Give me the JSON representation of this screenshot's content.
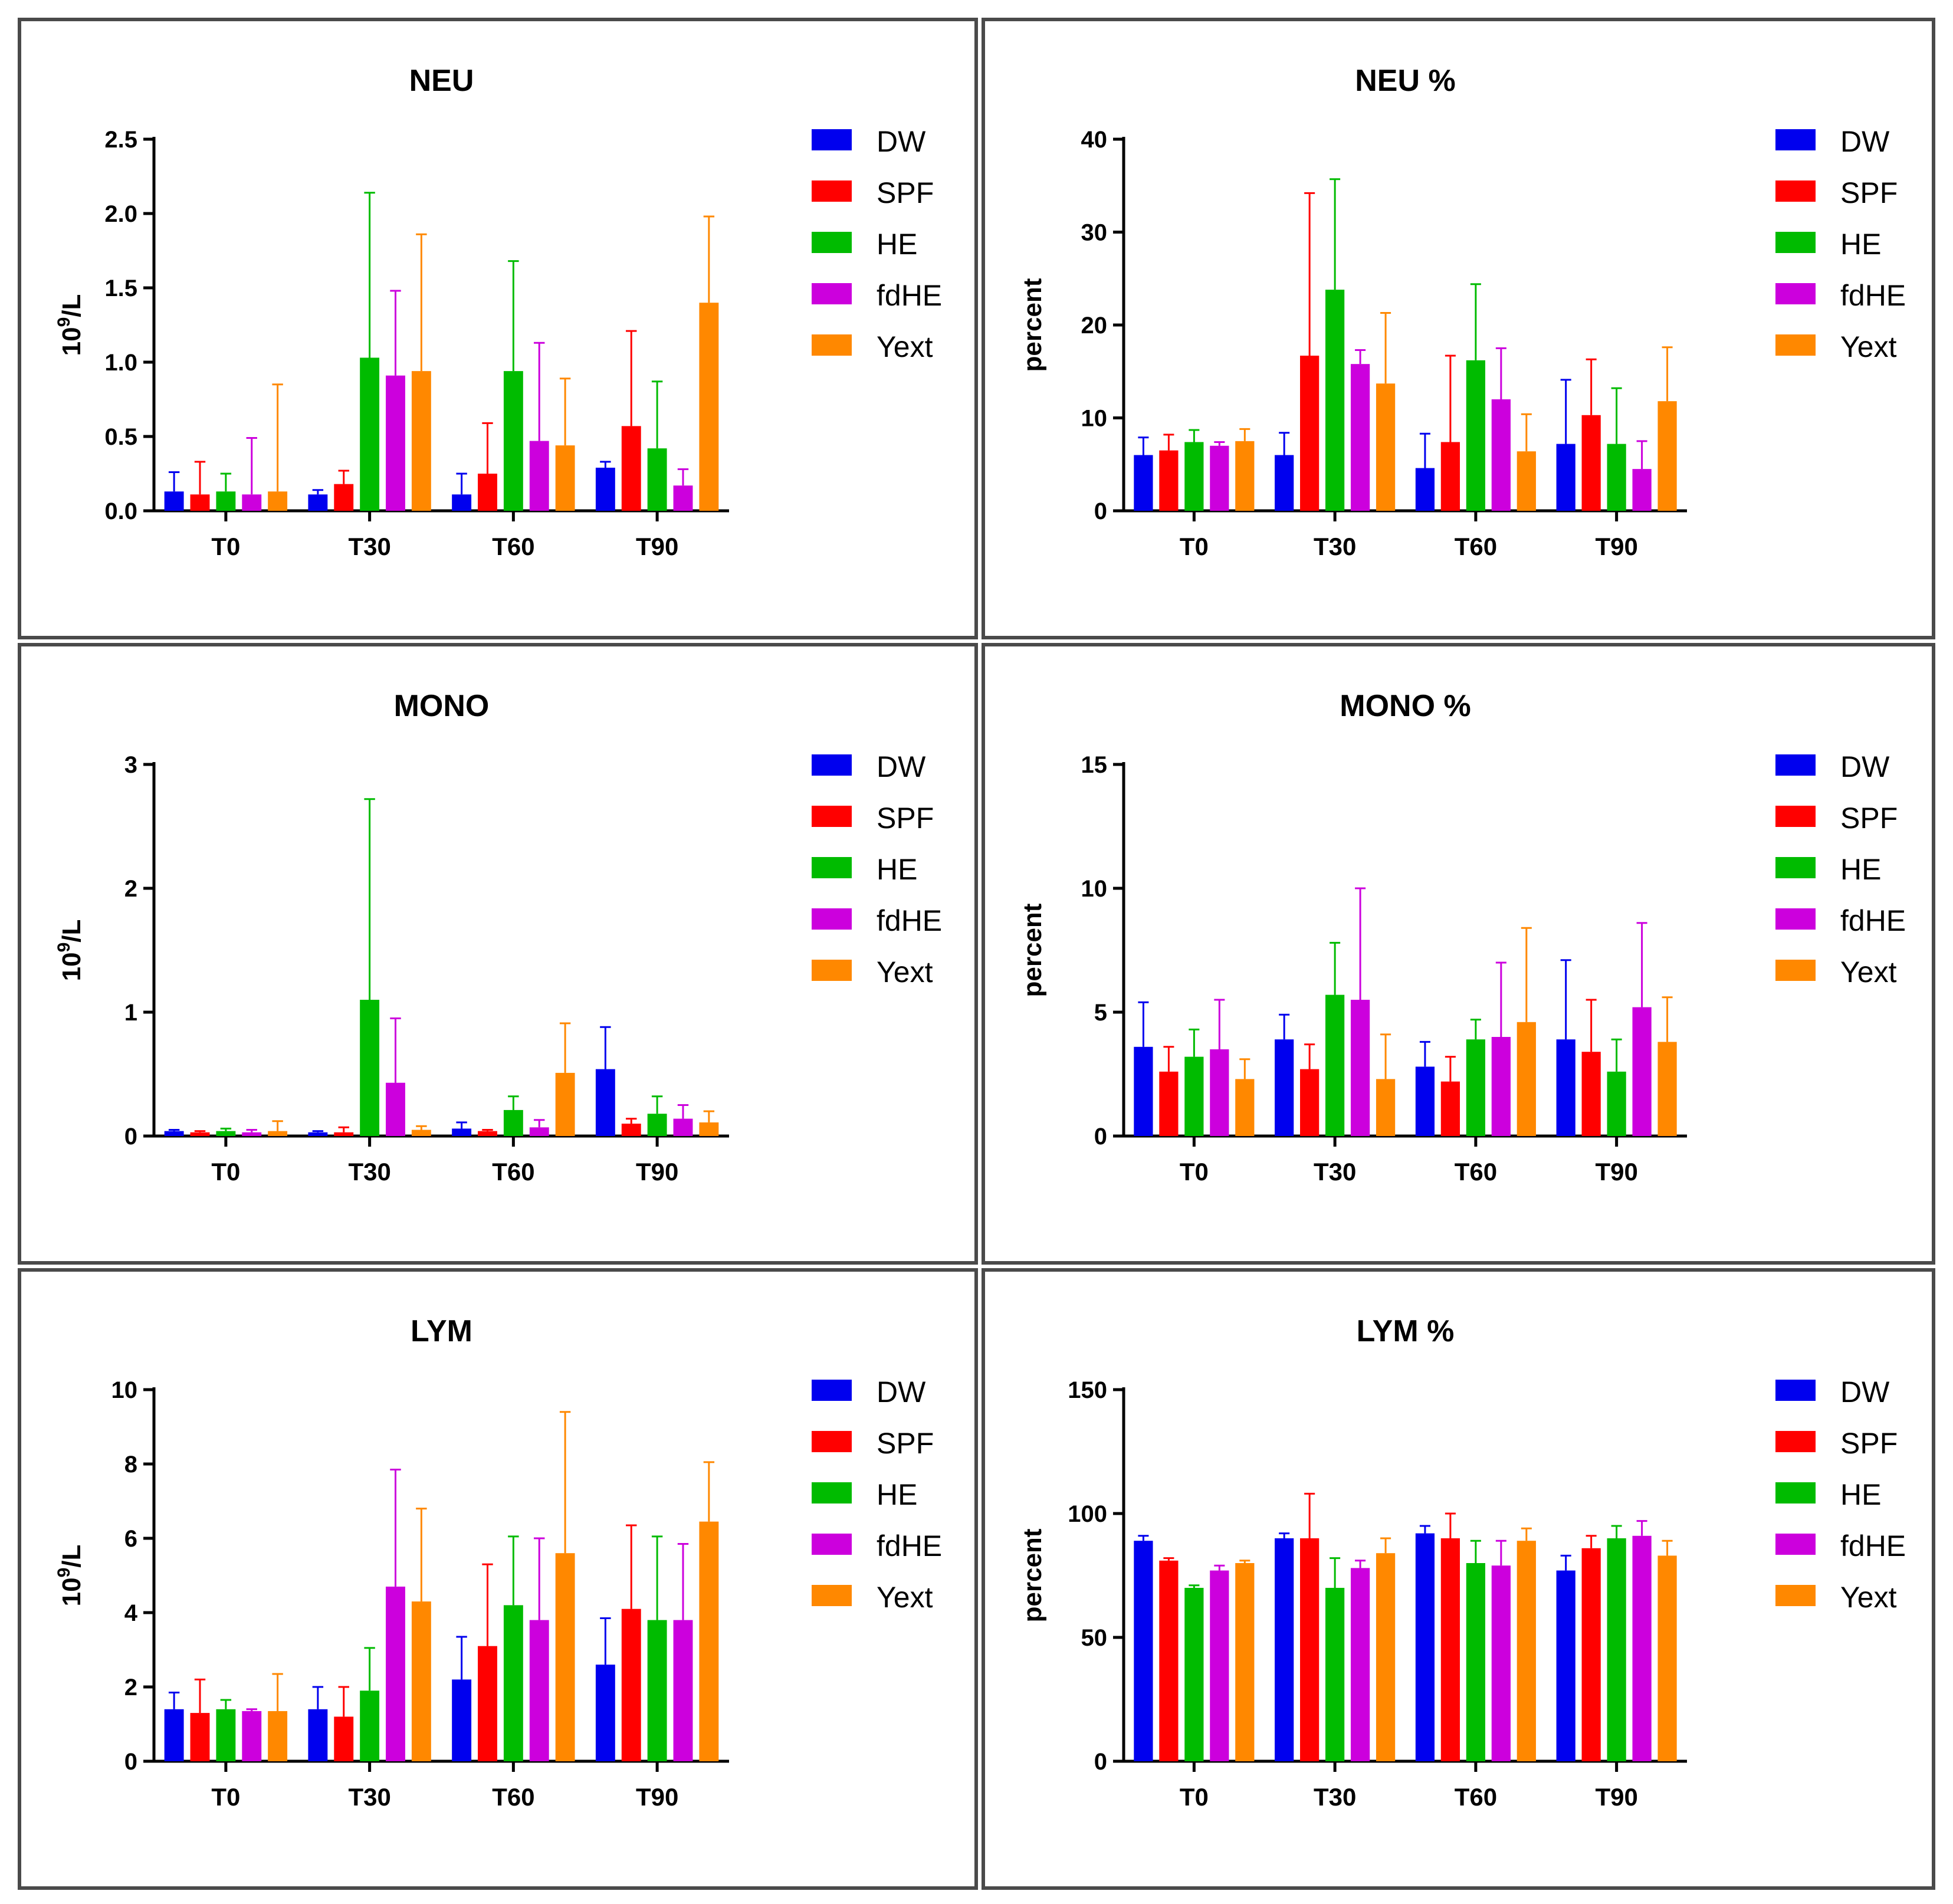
{
  "series_names": [
    "DW",
    "SPF",
    "HE",
    "fdHE",
    "Yext"
  ],
  "colors": {
    "DW": "#0000ee",
    "SPF": "#ff0000",
    "HE": "#00bb00",
    "fdHE": "#cc00dd",
    "Yext": "#ff8800"
  },
  "chart_data": [
    {
      "id": "neu",
      "type": "bar",
      "title": "NEU",
      "ylabel": "10^9/L",
      "ylabel_base": "10",
      "ylabel_sup": "9",
      "ylabel_rest": "/L",
      "xlabel": "",
      "ylim": [
        0,
        2.5
      ],
      "ticks": [
        "0.0",
        "0.5",
        "1.0",
        "1.5",
        "2.0",
        "2.5"
      ],
      "categories": [
        "T0",
        "T30",
        "T60",
        "T90"
      ],
      "legend": "right",
      "series": [
        {
          "name": "DW",
          "values": [
            0.13,
            0.11,
            0.11,
            0.29
          ],
          "errors": [
            0.13,
            0.03,
            0.14,
            0.04
          ]
        },
        {
          "name": "SPF",
          "values": [
            0.11,
            0.18,
            0.25,
            0.57
          ],
          "errors": [
            0.22,
            0.09,
            0.34,
            0.64
          ]
        },
        {
          "name": "HE",
          "values": [
            0.13,
            1.03,
            0.94,
            0.42
          ],
          "errors": [
            0.12,
            1.11,
            0.74,
            0.45
          ]
        },
        {
          "name": "fdHE",
          "values": [
            0.11,
            0.91,
            0.47,
            0.17
          ],
          "errors": [
            0.38,
            0.57,
            0.66,
            0.11
          ]
        },
        {
          "name": "Yext",
          "values": [
            0.13,
            0.94,
            0.44,
            1.4
          ],
          "errors": [
            0.72,
            0.92,
            0.45,
            0.58
          ]
        }
      ]
    },
    {
      "id": "neu-pct",
      "type": "bar",
      "title": "NEU %",
      "ylabel": "percent",
      "xlabel": "",
      "ylim": [
        0,
        40
      ],
      "ticks": [
        "0",
        "10",
        "20",
        "30",
        "40"
      ],
      "categories": [
        "T0",
        "T30",
        "T60",
        "T90"
      ],
      "legend": "right",
      "series": [
        {
          "name": "DW",
          "values": [
            6.0,
            6.0,
            4.6,
            7.2
          ],
          "errors": [
            1.9,
            2.4,
            3.7,
            6.9
          ]
        },
        {
          "name": "SPF",
          "values": [
            6.5,
            16.7,
            7.4,
            10.3
          ],
          "errors": [
            1.7,
            17.5,
            9.3,
            6.0
          ]
        },
        {
          "name": "HE",
          "values": [
            7.4,
            23.8,
            16.2,
            7.2
          ],
          "errors": [
            1.3,
            11.9,
            8.2,
            6.0
          ]
        },
        {
          "name": "fdHE",
          "values": [
            7.0,
            15.8,
            12.0,
            4.5
          ],
          "errors": [
            0.4,
            1.5,
            5.5,
            3.0
          ]
        },
        {
          "name": "Yext",
          "values": [
            7.5,
            13.7,
            6.4,
            11.8
          ],
          "errors": [
            1.3,
            7.6,
            4.0,
            5.8
          ]
        }
      ]
    },
    {
      "id": "mono",
      "type": "bar",
      "title": "MONO",
      "ylabel": "10^9/L",
      "ylabel_base": "10",
      "ylabel_sup": "9",
      "ylabel_rest": "/L",
      "xlabel": "",
      "ylim": [
        0,
        3
      ],
      "ticks": [
        "0",
        "1",
        "2",
        "3"
      ],
      "categories": [
        "T0",
        "T30",
        "T60",
        "T90"
      ],
      "legend": "right",
      "series": [
        {
          "name": "DW",
          "values": [
            0.04,
            0.03,
            0.06,
            0.54
          ],
          "errors": [
            0.01,
            0.01,
            0.05,
            0.34
          ]
        },
        {
          "name": "SPF",
          "values": [
            0.03,
            0.03,
            0.04,
            0.1
          ],
          "errors": [
            0.01,
            0.04,
            0.01,
            0.04
          ]
        },
        {
          "name": "HE",
          "values": [
            0.04,
            1.1,
            0.21,
            0.18
          ],
          "errors": [
            0.02,
            1.62,
            0.11,
            0.14
          ]
        },
        {
          "name": "fdHE",
          "values": [
            0.03,
            0.43,
            0.07,
            0.14
          ],
          "errors": [
            0.02,
            0.52,
            0.06,
            0.11
          ]
        },
        {
          "name": "Yext",
          "values": [
            0.04,
            0.05,
            0.51,
            0.11
          ],
          "errors": [
            0.08,
            0.03,
            0.4,
            0.09
          ]
        }
      ]
    },
    {
      "id": "mono-pct",
      "type": "bar",
      "title": "MONO %",
      "ylabel": "percent",
      "xlabel": "",
      "ylim": [
        0,
        15
      ],
      "ticks": [
        "0",
        "5",
        "10",
        "15"
      ],
      "categories": [
        "T0",
        "T30",
        "T60",
        "T90"
      ],
      "legend": "right",
      "series": [
        {
          "name": "DW",
          "values": [
            3.6,
            3.9,
            2.8,
            3.9
          ],
          "errors": [
            1.8,
            1.0,
            1.0,
            3.2
          ]
        },
        {
          "name": "SPF",
          "values": [
            2.6,
            2.7,
            2.2,
            3.4
          ],
          "errors": [
            1.0,
            1.0,
            1.0,
            2.1
          ]
        },
        {
          "name": "HE",
          "values": [
            3.2,
            5.7,
            3.9,
            2.6
          ],
          "errors": [
            1.1,
            2.1,
            0.8,
            1.3
          ]
        },
        {
          "name": "fdHE",
          "values": [
            3.5,
            5.5,
            4.0,
            5.2
          ],
          "errors": [
            2.0,
            4.5,
            3.0,
            3.4
          ]
        },
        {
          "name": "Yext",
          "values": [
            2.3,
            2.3,
            4.6,
            3.8
          ],
          "errors": [
            0.8,
            1.8,
            3.8,
            1.8
          ]
        }
      ]
    },
    {
      "id": "lym",
      "type": "bar",
      "title": "LYM",
      "ylabel": "10^9/L",
      "ylabel_base": "10",
      "ylabel_sup": "9",
      "ylabel_rest": "/L",
      "xlabel": "",
      "ylim": [
        0,
        10
      ],
      "ticks": [
        "0",
        "2",
        "4",
        "6",
        "8",
        "10"
      ],
      "categories": [
        "T0",
        "T30",
        "T60",
        "T90"
      ],
      "legend": "right",
      "series": [
        {
          "name": "DW",
          "values": [
            1.4,
            1.4,
            2.2,
            2.6
          ],
          "errors": [
            0.45,
            0.6,
            1.15,
            1.25
          ]
        },
        {
          "name": "SPF",
          "values": [
            1.3,
            1.2,
            3.1,
            4.1
          ],
          "errors": [
            0.9,
            0.8,
            2.2,
            2.25
          ]
        },
        {
          "name": "HE",
          "values": [
            1.4,
            1.9,
            4.2,
            3.8
          ],
          "errors": [
            0.25,
            1.15,
            1.85,
            2.25
          ]
        },
        {
          "name": "fdHE",
          "values": [
            1.35,
            4.7,
            3.8,
            3.8
          ],
          "errors": [
            0.05,
            3.15,
            2.2,
            2.05
          ]
        },
        {
          "name": "Yext",
          "values": [
            1.35,
            4.3,
            5.6,
            6.45
          ],
          "errors": [
            1.0,
            2.5,
            3.8,
            1.6
          ]
        }
      ]
    },
    {
      "id": "lym-pct",
      "type": "bar",
      "title": "LYM %",
      "ylabel": "percent",
      "xlabel": "",
      "ylim": [
        0,
        150
      ],
      "ticks": [
        "0",
        "50",
        "100",
        "150"
      ],
      "categories": [
        "T0",
        "T30",
        "T60",
        "T90"
      ],
      "legend": "right",
      "series": [
        {
          "name": "DW",
          "values": [
            89,
            90,
            92,
            77
          ],
          "errors": [
            2,
            2,
            3,
            6
          ]
        },
        {
          "name": "SPF",
          "values": [
            81,
            90,
            90,
            86
          ],
          "errors": [
            1,
            18,
            10,
            5
          ]
        },
        {
          "name": "HE",
          "values": [
            70,
            70,
            80,
            90
          ],
          "errors": [
            1,
            12,
            9,
            5
          ]
        },
        {
          "name": "fdHE",
          "values": [
            77,
            78,
            79,
            91
          ],
          "errors": [
            2,
            3,
            10,
            6
          ]
        },
        {
          "name": "Yext",
          "values": [
            80,
            84,
            89,
            83
          ],
          "errors": [
            1,
            6,
            5,
            6
          ]
        }
      ]
    }
  ]
}
